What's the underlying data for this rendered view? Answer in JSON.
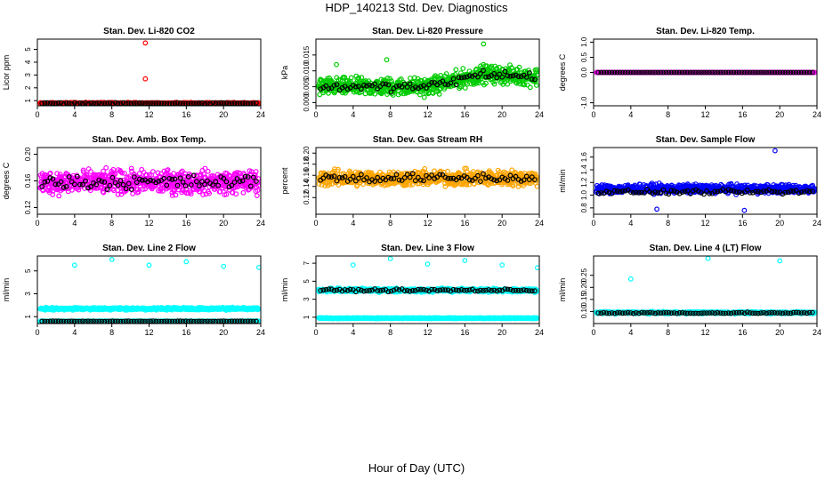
{
  "figure": {
    "title": "HDP_140213  Std. Dev. Diagnostics",
    "xlabel": "Hour of Day (UTC)"
  },
  "colors": {
    "red": "#ff0000",
    "green": "#00cc00",
    "magenta": "#ff00ff",
    "orange": "#ffa500",
    "blue": "#0000ff",
    "cyan": "#00ffff",
    "black": "#000000"
  },
  "chart_data": [
    {
      "type": "scatter",
      "title": "Stan. Dev. Li-820 CO2",
      "ylabel": "Licor ppm",
      "xlim": [
        0,
        24
      ],
      "xticks": [
        "0",
        "4",
        "8",
        "12",
        "16",
        "20",
        "24"
      ],
      "ylim": [
        0.6,
        5.8
      ],
      "yticks": [
        "1",
        "2",
        "3",
        "4",
        "5"
      ],
      "ytick_values": [
        1,
        2,
        3,
        4,
        5
      ],
      "color": "red",
      "base": 0.8,
      "spread": 0.08,
      "outliers": [
        {
          "x": 11.6,
          "y": 5.5
        },
        {
          "x": 11.6,
          "y": 2.7
        }
      ],
      "black_base": 0.8,
      "black_spread": 0.06
    },
    {
      "type": "scatter",
      "title": "Stan. Dev. Li-820 Pressure",
      "ylabel": "kPa",
      "xlim": [
        0,
        24
      ],
      "xticks": [
        "0",
        "4",
        "8",
        "12",
        "16",
        "20",
        "24"
      ],
      "ylim": [
        -0.001,
        0.02
      ],
      "yticks": [
        "0.000",
        "0.005",
        "0.010",
        "0.015"
      ],
      "ytick_values": [
        0,
        0.005,
        0.01,
        0.015
      ],
      "color": "green",
      "base": 0.005,
      "spread": 0.004,
      "trend": [
        {
          "x": 0,
          "y": 0.005
        },
        {
          "x": 12,
          "y": 0.005
        },
        {
          "x": 18,
          "y": 0.009
        },
        {
          "x": 24,
          "y": 0.008
        }
      ],
      "outliers": [
        {
          "x": 18,
          "y": 0.0185
        },
        {
          "x": 7.6,
          "y": 0.0135
        },
        {
          "x": 2.2,
          "y": 0.012
        }
      ],
      "black_base": 0.006,
      "black_spread": 0.002
    },
    {
      "type": "scatter",
      "title": "Stan. Dev. Li-820 Temp.",
      "ylabel": "degrees C",
      "xlim": [
        0,
        24
      ],
      "xticks": [
        "0",
        "4",
        "8",
        "12",
        "16",
        "20",
        "24"
      ],
      "ylim": [
        -1.1,
        1.1
      ],
      "yticks": [
        "-1.0",
        "0.0",
        "0.5",
        "1.0"
      ],
      "ytick_values": [
        -1,
        0,
        0.5,
        1
      ],
      "color": "magenta",
      "base": 0.0,
      "spread": 0.0,
      "outliers": [],
      "black_base": 0.0,
      "black_spread": 0.0
    },
    {
      "type": "scatter",
      "title": "Stan. Dev. Amb. Box Temp.",
      "ylabel": "degrees C",
      "xlim": [
        0,
        24
      ],
      "xticks": [
        "0",
        "4",
        "8",
        "12",
        "16",
        "20",
        "24"
      ],
      "ylim": [
        0.11,
        0.21
      ],
      "yticks": [
        "0.12",
        "0.16",
        "0.20"
      ],
      "ytick_values": [
        0.12,
        0.16,
        0.2
      ],
      "color": "magenta",
      "base": 0.158,
      "spread": 0.025,
      "outliers": [],
      "black_base": 0.158,
      "black_spread": 0.015
    },
    {
      "type": "scatter",
      "title": "Stan. Dev. Gas Stream RH",
      "ylabel": "percent",
      "xlim": [
        0,
        24
      ],
      "xticks": [
        "0",
        "4",
        "8",
        "12",
        "16",
        "20",
        "24"
      ],
      "ylim": [
        0.09,
        0.21
      ],
      "yticks": [
        "0.12",
        "0.14",
        "0.16",
        "0.18",
        "0.20"
      ],
      "ytick_values": [
        0.12,
        0.14,
        0.16,
        0.18,
        0.2
      ],
      "color": "orange",
      "base": 0.155,
      "spread": 0.02,
      "outliers": [],
      "black_base": 0.155,
      "black_spread": 0.012
    },
    {
      "type": "scatter",
      "title": "Stan. Dev. Sample Flow",
      "ylabel": "ml/min",
      "xlim": [
        0,
        24
      ],
      "xticks": [
        "0",
        "4",
        "8",
        "12",
        "16",
        "20",
        "24"
      ],
      "ylim": [
        0.7,
        1.75
      ],
      "yticks": [
        "0.8",
        "1.0",
        "1.2",
        "1.4",
        "1.6"
      ],
      "ytick_values": [
        0.8,
        1.0,
        1.2,
        1.4,
        1.6
      ],
      "color": "blue",
      "base": 1.1,
      "spread": 0.1,
      "outliers": [
        {
          "x": 19.5,
          "y": 1.7
        },
        {
          "x": 6.8,
          "y": 0.78
        },
        {
          "x": 16.2,
          "y": 0.76
        }
      ],
      "black_base": 1.05,
      "black_spread": 0.05
    },
    {
      "type": "scatter",
      "title": "Stan. Dev. Line 2 Flow",
      "ylabel": "ml/min",
      "xlim": [
        0,
        24
      ],
      "xticks": [
        "0",
        "4",
        "8",
        "12",
        "16",
        "20",
        "24"
      ],
      "ylim": [
        0.4,
        6.3
      ],
      "yticks": [
        "1",
        "3",
        "5"
      ],
      "ytick_values": [
        1,
        3,
        5
      ],
      "color": "cyan",
      "base": 1.7,
      "spread": 0.15,
      "outliers": [
        {
          "x": 4,
          "y": 5.5
        },
        {
          "x": 8,
          "y": 6.0
        },
        {
          "x": 12,
          "y": 5.5
        },
        {
          "x": 16,
          "y": 5.8
        },
        {
          "x": 20,
          "y": 5.4
        },
        {
          "x": 23.8,
          "y": 5.3
        }
      ],
      "second_band": 0.6,
      "black_base": 0.6,
      "black_spread": 0.03
    },
    {
      "type": "scatter",
      "title": "Stan. Dev. Line 3 Flow",
      "ylabel": "ml/min",
      "xlim": [
        0,
        24
      ],
      "xticks": [
        "0",
        "4",
        "8",
        "12",
        "16",
        "20",
        "24"
      ],
      "ylim": [
        0.3,
        7.8
      ],
      "yticks": [
        "1",
        "3",
        "5",
        "7"
      ],
      "ytick_values": [
        1,
        3,
        5,
        7
      ],
      "color": "cyan",
      "base": 4.0,
      "spread": 0.3,
      "outliers": [
        {
          "x": 4,
          "y": 6.8
        },
        {
          "x": 8,
          "y": 7.5
        },
        {
          "x": 12,
          "y": 6.9
        },
        {
          "x": 16,
          "y": 7.3
        },
        {
          "x": 20,
          "y": 6.8
        },
        {
          "x": 23.8,
          "y": 6.5
        }
      ],
      "second_band": 0.9,
      "black_base": 4.0,
      "black_spread": 0.2
    },
    {
      "type": "scatter",
      "title": "Stan. Dev. Line 4 (LT) Flow",
      "ylabel": "ml/min",
      "xlim": [
        0,
        24
      ],
      "xticks": [
        "0",
        "4",
        "8",
        "12",
        "16",
        "20",
        "24"
      ],
      "ylim": [
        0.05,
        0.33
      ],
      "yticks": [
        "0.10",
        "0.15",
        "0.20",
        "0.25"
      ],
      "ytick_values": [
        0.1,
        0.15,
        0.2,
        0.25
      ],
      "color": "cyan",
      "base": 0.095,
      "spread": 0.006,
      "outliers": [
        {
          "x": 4,
          "y": 0.235
        },
        {
          "x": 12.3,
          "y": 0.32
        },
        {
          "x": 20,
          "y": 0.31
        }
      ],
      "black_base": 0.094,
      "black_spread": 0.004
    }
  ]
}
